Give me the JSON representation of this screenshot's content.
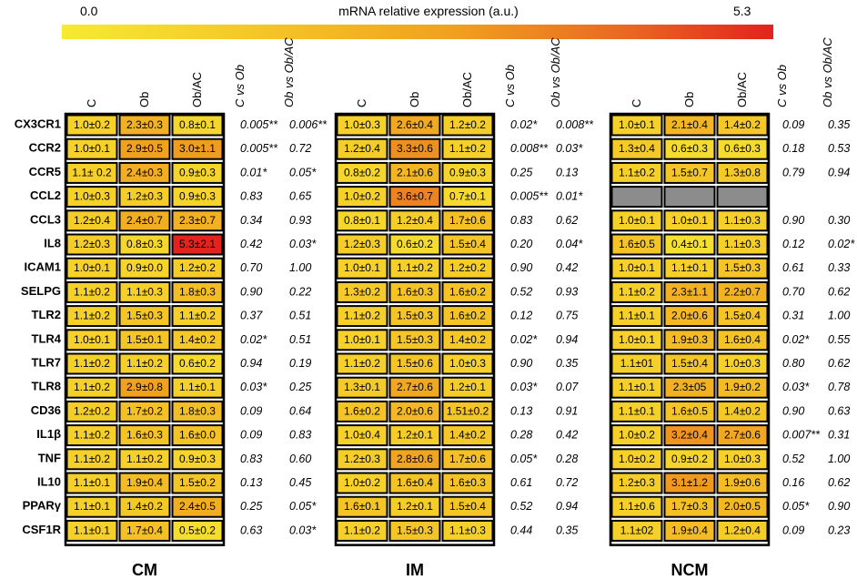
{
  "scale": {
    "min_label": "0.0",
    "max_label": "5.3",
    "title": "mRNA relative expression (a.u.)",
    "min": 0.0,
    "max": 5.3
  },
  "colors": {
    "low": "#f6ea32",
    "mid1": "#f4c326",
    "mid2": "#f0a11e",
    "mid3": "#ea6622",
    "high": "#e2231e",
    "missing": "#8c8c8c"
  },
  "chart_data": {
    "type": "heatmap",
    "genes": [
      "CX3CR1",
      "CCR2",
      "CCR5",
      "CCL2",
      "CCL3",
      "IL8",
      "ICAM1",
      "SELPG",
      "TLR2",
      "TLR4",
      "TLR7",
      "TLR8",
      "CD36",
      "IL1β",
      "TNF",
      "IL10",
      "PPARγ",
      "CSF1R"
    ],
    "column_labels": [
      "C",
      "Ob",
      "Ob/AC"
    ],
    "stat_labels": [
      "C vs Ob",
      "Ob vs Ob/AC"
    ],
    "panels": [
      {
        "name": "CM",
        "values": [
          [
            1.0,
            2.3,
            0.8
          ],
          [
            1.0,
            2.9,
            3.0
          ],
          [
            1.1,
            2.4,
            0.9
          ],
          [
            1.0,
            1.2,
            0.9
          ],
          [
            1.2,
            2.4,
            2.3
          ],
          [
            1.2,
            0.8,
            5.3
          ],
          [
            1.0,
            0.9,
            1.2
          ],
          [
            1.1,
            1.1,
            1.8
          ],
          [
            1.1,
            1.5,
            1.1
          ],
          [
            1.0,
            1.5,
            1.4
          ],
          [
            1.1,
            1.1,
            0.6
          ],
          [
            1.1,
            2.9,
            1.1
          ],
          [
            1.2,
            1.7,
            1.8
          ],
          [
            1.1,
            1.6,
            1.6
          ],
          [
            1.1,
            1.1,
            0.9
          ],
          [
            1.1,
            1.9,
            1.5
          ],
          [
            1.1,
            1.4,
            2.4
          ],
          [
            1.1,
            1.7,
            0.5
          ]
        ],
        "labels": [
          [
            "1.0±0.2",
            "2.3±0.3",
            "0.8±0.1"
          ],
          [
            "1.0±0.1",
            "2.9±0.5",
            "3.0±1.1"
          ],
          [
            "1.1± 0.2",
            "2.4±0.3",
            "0.9±0.3"
          ],
          [
            "1.0±0.3",
            "1.2±0.3",
            "0.9±0.3"
          ],
          [
            "1.2±0.4",
            "2.4±0.7",
            "2.3±0.7"
          ],
          [
            "1.2±0.3",
            "0.8±0.3",
            "5.3±2.1"
          ],
          [
            "1.0±0.1",
            "0.9±0.0",
            "1.2±0.2"
          ],
          [
            "1.1±0.2",
            "1.1±0.3",
            "1.8±0.3"
          ],
          [
            "1.1±0.2",
            "1.5±0.3",
            "1.1±0.2"
          ],
          [
            "1.0±0.1",
            "1.5±0.1",
            "1.4±0.2"
          ],
          [
            "1.1±0.2",
            "1.1±0.2",
            "0.6±0.2"
          ],
          [
            "1.1±0.2",
            "2.9±0.8",
            "1.1±0.1"
          ],
          [
            "1.2±0.2",
            "1.7±0.2",
            "1.8±0.3"
          ],
          [
            "1.1±0.2",
            "1.6±0.3",
            "1.6±0.0"
          ],
          [
            "1.1±0.2",
            "1.1±0.2",
            "0.9±0.3"
          ],
          [
            "1.1±0.1",
            "1.9±0.4",
            "1.5±0.2"
          ],
          [
            "1.1±0.1",
            "1.4±0.2",
            "2.4±0.5"
          ],
          [
            "1.1±0.1",
            "1.7±0.4",
            "0.5±0.2"
          ]
        ],
        "stats": [
          [
            "0.005**",
            "0.006**"
          ],
          [
            "0.005**",
            "0.72"
          ],
          [
            "0.01*",
            "0.05*"
          ],
          [
            "0.83",
            "0.65"
          ],
          [
            "0.34",
            "0.93"
          ],
          [
            "0.42",
            "0.03*"
          ],
          [
            "0.70",
            "1.00"
          ],
          [
            "0.90",
            "0.22"
          ],
          [
            "0.37",
            "0.51"
          ],
          [
            "0.02*",
            "0.51"
          ],
          [
            "0.94",
            "0.19"
          ],
          [
            "0.03*",
            "0.25"
          ],
          [
            "0.09",
            "0.64"
          ],
          [
            "0.09",
            "0.83"
          ],
          [
            "0.83",
            "0.60"
          ],
          [
            "0.13",
            "0.45"
          ],
          [
            "0.25",
            "0.05*"
          ],
          [
            "0.63",
            "0.03*"
          ]
        ]
      },
      {
        "name": "IM",
        "values": [
          [
            1.0,
            2.6,
            1.2
          ],
          [
            1.2,
            3.3,
            1.1
          ],
          [
            0.8,
            2.1,
            0.9
          ],
          [
            1.0,
            3.6,
            0.7
          ],
          [
            0.8,
            1.2,
            1.7
          ],
          [
            1.2,
            0.6,
            1.5
          ],
          [
            1.0,
            1.1,
            1.2
          ],
          [
            1.3,
            1.6,
            1.6
          ],
          [
            1.1,
            1.5,
            1.6
          ],
          [
            1.0,
            1.5,
            1.4
          ],
          [
            1.1,
            1.5,
            1.0
          ],
          [
            1.3,
            2.7,
            1.2
          ],
          [
            1.6,
            2.0,
            1.51
          ],
          [
            1.0,
            1.2,
            1.4
          ],
          [
            1.2,
            2.8,
            1.7
          ],
          [
            1.0,
            1.6,
            1.6
          ],
          [
            1.6,
            1.2,
            1.5
          ],
          [
            1.1,
            1.5,
            1.1
          ]
        ],
        "labels": [
          [
            "1.0±0.3",
            "2.6±0.4",
            "1.2±0.2"
          ],
          [
            "1.2±0.4",
            "3.3±0.6",
            "1.1±0.2"
          ],
          [
            "0.8±0.2",
            "2.1±0.6",
            "0.9±0.3"
          ],
          [
            "1.0±0.2",
            "3.6±0.7",
            "0.7±0.1"
          ],
          [
            "0.8±0.1",
            "1.2±0.4",
            "1.7±0.6"
          ],
          [
            "1.2±0.3",
            "0.6±0.2",
            "1.5±0.4"
          ],
          [
            "1.0±0.1",
            "1.1±0.2",
            "1.2±0.2"
          ],
          [
            "1.3±0.2",
            "1.6±0.3",
            "1.6±0.2"
          ],
          [
            "1.1±0.2",
            "1.5±0.3",
            "1.6±0.2"
          ],
          [
            "1.0±0.1",
            "1.5±0.3",
            "1.4±0.2"
          ],
          [
            "1.1±0.2",
            "1.5±0.6",
            "1.0±0.3"
          ],
          [
            "1.3±0.1",
            "2.7±0.6",
            "1.2±0.1"
          ],
          [
            "1.6±0.2",
            "2.0±0.6",
            "1.51±0.2"
          ],
          [
            "1.0±0.4",
            "1.2±0.1",
            "1.4±0.2"
          ],
          [
            "1.2±0.3",
            "2.8±0.6",
            "1.7±0.6"
          ],
          [
            "1.0±0.2",
            "1.6±0.4",
            "1.6±0.3"
          ],
          [
            "1.6±0.1",
            "1.2±0.1",
            "1.5±0.4"
          ],
          [
            "1.1±0.2",
            "1.5±0.3",
            "1.1±0.3"
          ]
        ],
        "stats": [
          [
            "0.02*",
            "0.008**"
          ],
          [
            "0.008**",
            "0.03*"
          ],
          [
            "0.25",
            "0.13"
          ],
          [
            "0.005**",
            "0.01*"
          ],
          [
            "0.83",
            "0.62"
          ],
          [
            "0.20",
            "0.04*"
          ],
          [
            "0.90",
            "0.42"
          ],
          [
            "0.52",
            "0.93"
          ],
          [
            "0.12",
            "0.75"
          ],
          [
            "0.02*",
            "0.94"
          ],
          [
            "0.90",
            "0.35"
          ],
          [
            "0.03*",
            "0.07"
          ],
          [
            "0.13",
            "0.91"
          ],
          [
            "0.28",
            "0.42"
          ],
          [
            "0.05*",
            "0.28"
          ],
          [
            "0.61",
            "0.72"
          ],
          [
            "0.52",
            "0.94"
          ],
          [
            "0.44",
            "0.35"
          ]
        ]
      },
      {
        "name": "NCM",
        "values": [
          [
            1.0,
            2.1,
            1.4
          ],
          [
            1.3,
            0.6,
            0.6
          ],
          [
            1.1,
            1.5,
            1.3
          ],
          [
            null,
            null,
            null
          ],
          [
            1.0,
            1.0,
            1.1
          ],
          [
            1.6,
            0.4,
            1.1
          ],
          [
            1.0,
            1.1,
            1.5
          ],
          [
            1.1,
            2.3,
            2.2
          ],
          [
            1.1,
            2.0,
            1.5
          ],
          [
            1.0,
            1.9,
            1.6
          ],
          [
            1.1,
            1.5,
            1.0
          ],
          [
            1.1,
            2.3,
            1.9
          ],
          [
            1.1,
            1.6,
            1.4
          ],
          [
            1.0,
            3.2,
            2.7
          ],
          [
            1.0,
            0.9,
            1.0
          ],
          [
            1.2,
            3.1,
            1.9
          ],
          [
            1.1,
            1.7,
            2.0
          ],
          [
            1.1,
            1.9,
            1.2
          ]
        ],
        "labels": [
          [
            "1.0±0.1",
            "2.1±0.4",
            "1.4±0.2"
          ],
          [
            "1.3±0.4",
            "0.6±0.3",
            "0.6±0.3"
          ],
          [
            "1.1±0.2",
            "1.5±0.7",
            "1.3±0.8"
          ],
          [
            "",
            "",
            ""
          ],
          [
            "1.0±0.1",
            "1.0±0.1",
            "1.1±0.3"
          ],
          [
            "1.6±0.5",
            "0.4±0.1",
            "1.1±0.3"
          ],
          [
            "1.0±0.1",
            "1.1±0.1",
            "1.5±0.3"
          ],
          [
            "1.1±0.2",
            "2.3±1.1",
            "2.2±0.7"
          ],
          [
            "1.1±0.1",
            "2.0±0.6",
            "1.5±0.4"
          ],
          [
            "1.0±0.1",
            "1.9±0.3",
            "1.6±0.4"
          ],
          [
            "1.1±01",
            "1.5±0.4",
            "1.0±0.3"
          ],
          [
            "1.1±0.1",
            "2.3±05",
            "1.9±0.2"
          ],
          [
            "1.1±0.1",
            "1.6±0.5",
            "1.4±0.2"
          ],
          [
            "1.0±0.2",
            "3.2±0.4",
            "2.7±0.6"
          ],
          [
            "1.0±0.2",
            "0.9±0.2",
            "1.0±0.3"
          ],
          [
            "1.2±0.3",
            "3.1±1.2",
            "1.9±0.6"
          ],
          [
            "1.1±0.6",
            "1.7±0.3",
            "2.0±0.5"
          ],
          [
            "1.1±02",
            "1.9±0.4",
            "1.2±0.4"
          ]
        ],
        "stats": [
          [
            "0.09",
            "0.35"
          ],
          [
            "0.18",
            "0.53"
          ],
          [
            "0.79",
            "0.94"
          ],
          [
            "",
            ""
          ],
          [
            "0.90",
            "0.30"
          ],
          [
            "0.12",
            "0.02*"
          ],
          [
            "0.61",
            "0.33"
          ],
          [
            "0.70",
            "0.62"
          ],
          [
            "0.31",
            "1.00"
          ],
          [
            "0.02*",
            "0.55"
          ],
          [
            "0.80",
            "0.62"
          ],
          [
            "0.03*",
            "0.78"
          ],
          [
            "0.90",
            "0.63"
          ],
          [
            "0.007**",
            "0.31"
          ],
          [
            "0.52",
            "1.00"
          ],
          [
            "0.16",
            "0.62"
          ],
          [
            "0.05*",
            "0.90"
          ],
          [
            "0.09",
            "0.23"
          ]
        ]
      }
    ]
  }
}
